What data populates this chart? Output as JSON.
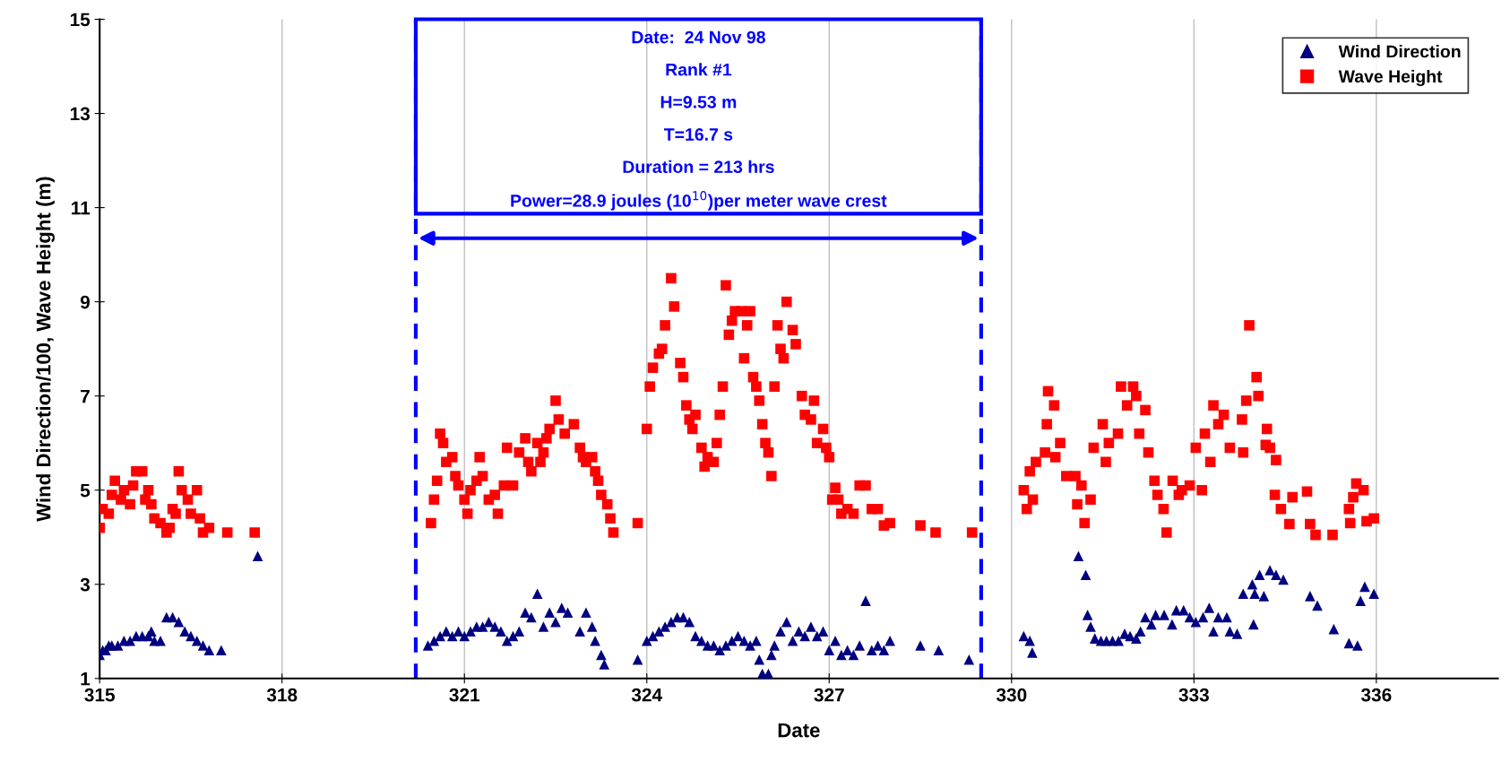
{
  "chart_data": {
    "type": "scatter",
    "xlabel": "Date",
    "ylabel": "Wind Direction/100, Wave Height (m)",
    "xlim": [
      315,
      338
    ],
    "xticks": [
      315,
      318,
      321,
      324,
      327,
      330,
      333,
      336
    ],
    "ylim": [
      1,
      15
    ],
    "yticks": [
      1,
      3,
      5,
      7,
      9,
      11,
      13,
      15
    ],
    "grid": "x",
    "legend": "top right",
    "annotations": [
      "Date:  24 Nov 98",
      "Rank #1",
      "H=9.53 m",
      "T=16.7 s",
      "Duration = 213 hrs",
      "Power=28.9 joules (10$^{10}$)per meter wave crest"
    ],
    "ref_lines": [
      {
        "axis": "x",
        "value": 320.2,
        "label": null,
        "color": "#0000ff",
        "line_style": "dashed"
      },
      {
        "axis": "x",
        "value": 329.5,
        "label": null,
        "color": "#0000ff",
        "line_style": "dashed"
      }
    ],
    "series": [
      {
        "name": "Wind Direction",
        "color": "#000080",
        "marker": "triangle",
        "x": [
          315.0,
          315.05,
          315.1,
          315.15,
          315.2,
          315.3,
          315.4,
          315.5,
          315.6,
          315.7,
          315.8,
          315.85,
          315.9,
          316.0,
          316.1,
          316.2,
          316.3,
          316.4,
          316.5,
          316.6,
          316.7,
          316.8,
          317.0,
          317.6,
          320.4,
          320.5,
          320.6,
          320.7,
          320.8,
          320.9,
          321.0,
          321.1,
          321.2,
          321.3,
          321.4,
          321.5,
          321.6,
          321.7,
          321.8,
          321.9,
          322.0,
          322.1,
          322.2,
          322.3,
          322.4,
          322.5,
          322.6,
          322.7,
          322.9,
          323.0,
          323.1,
          323.15,
          323.25,
          323.3,
          323.85,
          324.0,
          324.1,
          324.2,
          324.3,
          324.4,
          324.5,
          324.6,
          324.7,
          324.8,
          324.9,
          325.0,
          325.1,
          325.2,
          325.3,
          325.4,
          325.5,
          325.6,
          325.7,
          325.8,
          325.85,
          325.9,
          326.0,
          326.05,
          326.1,
          326.2,
          326.3,
          326.4,
          326.5,
          326.6,
          326.7,
          326.8,
          326.9,
          327.0,
          327.1,
          327.2,
          327.3,
          327.4,
          327.5,
          327.6,
          327.7,
          327.8,
          327.9,
          328.0,
          328.5,
          328.8,
          329.3,
          330.2,
          330.3,
          330.34,
          331.1,
          331.22,
          331.25,
          331.3,
          331.37,
          331.47,
          331.56,
          331.66,
          331.76,
          331.86,
          331.95,
          332.05,
          332.12,
          332.2,
          332.3,
          332.37,
          332.51,
          332.64,
          332.71,
          332.83,
          332.93,
          333.03,
          333.15,
          333.25,
          333.32,
          333.4,
          333.54,
          333.59,
          333.71,
          333.81,
          333.96,
          333.98,
          334.0,
          334.08,
          334.15,
          334.25,
          334.35,
          334.47,
          334.91,
          335.03,
          335.3,
          335.55,
          335.69,
          335.74,
          335.81,
          335.96
        ],
        "values": [
          1.5,
          1.6,
          1.6,
          1.7,
          1.7,
          1.7,
          1.8,
          1.8,
          1.9,
          1.9,
          1.9,
          2.0,
          1.8,
          1.8,
          2.3,
          2.3,
          2.2,
          2.0,
          1.9,
          1.8,
          1.7,
          1.6,
          1.6,
          3.6,
          1.7,
          1.8,
          1.9,
          2.0,
          1.9,
          2.0,
          1.9,
          2.0,
          2.1,
          2.1,
          2.2,
          2.1,
          2.0,
          1.8,
          1.9,
          2.0,
          2.4,
          2.3,
          2.8,
          2.1,
          2.4,
          2.2,
          2.5,
          2.4,
          2.0,
          2.4,
          2.1,
          1.8,
          1.5,
          1.3,
          1.4,
          1.8,
          1.9,
          2.0,
          2.1,
          2.2,
          2.3,
          2.3,
          2.2,
          1.9,
          1.8,
          1.7,
          1.7,
          1.6,
          1.7,
          1.8,
          1.9,
          1.8,
          1.7,
          1.8,
          1.4,
          1.1,
          1.1,
          1.5,
          1.7,
          2.0,
          2.2,
          1.8,
          2.0,
          1.9,
          2.1,
          1.9,
          2.0,
          1.6,
          1.8,
          1.5,
          1.6,
          1.5,
          1.7,
          2.65,
          1.6,
          1.7,
          1.6,
          1.8,
          1.7,
          1.6,
          1.4,
          1.9,
          1.8,
          1.55,
          3.6,
          3.2,
          2.35,
          2.1,
          1.85,
          1.8,
          1.8,
          1.8,
          1.8,
          1.95,
          1.9,
          1.85,
          2.0,
          2.3,
          2.15,
          2.35,
          2.35,
          2.15,
          2.45,
          2.45,
          2.3,
          2.2,
          2.3,
          2.5,
          2.0,
          2.3,
          2.3,
          2.0,
          1.95,
          2.8,
          3.0,
          2.15,
          2.8,
          3.2,
          2.75,
          3.3,
          3.2,
          3.1,
          2.75,
          2.55,
          2.05,
          1.75,
          1.7,
          2.65,
          2.95,
          2.8
        ]
      },
      {
        "name": "Wave Height",
        "color": "#ff0000",
        "marker": "square",
        "x": [
          315.0,
          315.05,
          315.15,
          315.2,
          315.25,
          315.35,
          315.4,
          315.5,
          315.55,
          315.6,
          315.7,
          315.75,
          315.8,
          315.85,
          315.9,
          316.0,
          316.1,
          316.15,
          316.2,
          316.25,
          316.3,
          316.35,
          316.45,
          316.5,
          316.6,
          316.65,
          316.7,
          316.8,
          317.1,
          317.55,
          320.45,
          320.5,
          320.55,
          320.6,
          320.65,
          320.7,
          320.8,
          320.85,
          320.9,
          321.0,
          321.05,
          321.1,
          321.2,
          321.25,
          321.3,
          321.4,
          321.5,
          321.55,
          321.65,
          321.7,
          321.8,
          321.9,
          322.0,
          322.05,
          322.1,
          322.2,
          322.25,
          322.3,
          322.35,
          322.4,
          322.5,
          322.55,
          322.65,
          322.8,
          322.9,
          322.95,
          323.0,
          323.1,
          323.15,
          323.2,
          323.25,
          323.35,
          323.4,
          323.45,
          323.85,
          324.0,
          324.05,
          324.1,
          324.2,
          324.25,
          324.3,
          324.4,
          324.45,
          324.55,
          324.6,
          324.65,
          324.7,
          324.75,
          324.8,
          324.9,
          324.95,
          325.0,
          325.1,
          325.15,
          325.2,
          325.25,
          325.3,
          325.35,
          325.4,
          325.45,
          325.55,
          325.6,
          325.65,
          325.7,
          325.75,
          325.8,
          325.85,
          325.9,
          325.95,
          326.0,
          326.05,
          326.1,
          326.15,
          326.2,
          326.25,
          326.3,
          326.4,
          326.45,
          326.55,
          326.6,
          326.7,
          326.75,
          326.8,
          326.9,
          326.95,
          327.0,
          327.05,
          327.1,
          327.15,
          327.2,
          327.3,
          327.4,
          327.5,
          327.6,
          327.7,
          327.8,
          327.9,
          328.0,
          328.5,
          328.75,
          329.35,
          330.2,
          330.25,
          330.35,
          330.3,
          330.4,
          330.55,
          330.58,
          330.6,
          330.7,
          330.72,
          330.8,
          330.9,
          331.05,
          331.15,
          331.08,
          331.3,
          331.2,
          331.35,
          331.5,
          331.55,
          331.6,
          331.75,
          331.8,
          332.0,
          331.9,
          332.05,
          332.2,
          332.1,
          332.25,
          332.35,
          332.4,
          332.5,
          332.55,
          332.65,
          332.75,
          332.8,
          332.93,
          333.13,
          333.03,
          333.18,
          333.27,
          333.32,
          333.49,
          333.4,
          333.59,
          333.79,
          333.81,
          333.86,
          333.91,
          334.03,
          334.06,
          334.2,
          334.18,
          334.25,
          334.35,
          334.33,
          334.43,
          334.62,
          334.57,
          334.86,
          334.91,
          335.0,
          335.28,
          335.57,
          335.55,
          335.62,
          335.67,
          335.79,
          335.84,
          335.96
        ],
        "values": [
          4.2,
          4.6,
          4.5,
          4.9,
          5.2,
          4.8,
          5.0,
          4.7,
          5.1,
          5.4,
          5.4,
          4.8,
          5.0,
          4.7,
          4.4,
          4.3,
          4.1,
          4.2,
          4.6,
          4.5,
          5.4,
          5.0,
          4.8,
          4.5,
          5.0,
          4.4,
          4.1,
          4.2,
          4.1,
          4.1,
          4.3,
          4.8,
          5.2,
          6.2,
          6.0,
          5.6,
          5.7,
          5.3,
          5.1,
          4.8,
          4.5,
          5.0,
          5.2,
          5.7,
          5.3,
          4.8,
          4.9,
          4.5,
          5.1,
          5.9,
          5.1,
          5.8,
          6.1,
          5.6,
          5.4,
          6.0,
          5.6,
          5.8,
          6.1,
          6.3,
          6.9,
          6.5,
          6.2,
          6.4,
          5.9,
          5.7,
          5.6,
          5.7,
          5.4,
          5.2,
          4.9,
          4.7,
          4.4,
          4.1,
          4.3,
          6.3,
          7.2,
          7.6,
          7.9,
          8.0,
          8.5,
          9.5,
          8.9,
          7.7,
          7.4,
          6.8,
          6.5,
          6.3,
          6.6,
          5.9,
          5.5,
          5.7,
          5.6,
          6.0,
          6.6,
          7.2,
          9.35,
          8.3,
          8.6,
          8.8,
          8.8,
          7.8,
          8.5,
          8.8,
          7.4,
          7.2,
          6.9,
          6.4,
          6.0,
          5.8,
          5.3,
          7.2,
          8.5,
          8.0,
          7.8,
          9.0,
          8.4,
          8.1,
          7.0,
          6.6,
          6.5,
          6.9,
          6.0,
          6.3,
          5.9,
          5.7,
          4.8,
          5.05,
          4.8,
          4.5,
          4.6,
          4.5,
          5.1,
          5.1,
          4.6,
          4.6,
          4.25,
          4.3,
          4.25,
          4.1,
          4.1,
          5.0,
          4.6,
          4.8,
          5.4,
          5.6,
          5.8,
          6.4,
          7.1,
          6.8,
          5.7,
          6.0,
          5.3,
          5.3,
          5.1,
          4.7,
          4.8,
          4.3,
          5.9,
          6.4,
          5.6,
          6.0,
          6.2,
          7.2,
          7.2,
          6.8,
          7.0,
          6.7,
          6.2,
          5.8,
          5.2,
          4.9,
          4.6,
          4.1,
          5.2,
          4.9,
          5.0,
          5.1,
          5.0,
          5.9,
          6.2,
          5.6,
          6.8,
          6.6,
          6.4,
          5.9,
          6.5,
          5.8,
          6.9,
          8.5,
          7.4,
          7.0,
          6.3,
          5.96,
          5.9,
          5.64,
          4.9,
          4.6,
          4.85,
          4.28,
          4.97,
          4.28,
          4.05,
          4.05,
          4.3,
          4.6,
          4.85,
          5.14,
          5.0,
          4.34,
          4.4
        ]
      }
    ]
  }
}
